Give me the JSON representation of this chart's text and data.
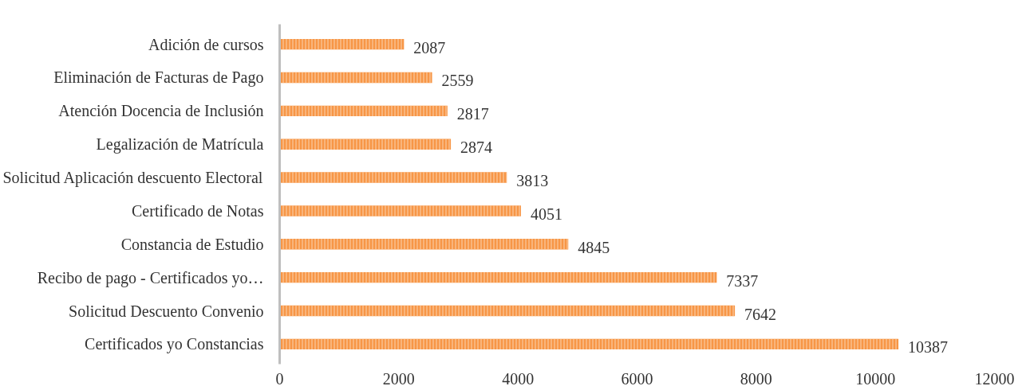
{
  "chart_data": {
    "type": "bar",
    "orientation": "horizontal",
    "categories": [
      "Adición de cursos",
      "Eliminación de Facturas de Pago",
      "Atención Docencia de Inclusión",
      "Legalización de Matrícula",
      "Solicitud Aplicación descuento Electoral",
      "Certificado de Notas",
      "Constancia de Estudio",
      "Recibo de pago - Certificados yo…",
      "Solicitud Descuento Convenio",
      "Certificados yo Constancias"
    ],
    "values": [
      2087,
      2559,
      2817,
      2874,
      3813,
      4051,
      4845,
      7337,
      7642,
      10387
    ],
    "color": "#f79646",
    "xlim": [
      0,
      12000
    ],
    "xticks": [
      0,
      2000,
      4000,
      6000,
      8000,
      10000,
      12000
    ],
    "data_labels": true,
    "grid": false
  }
}
